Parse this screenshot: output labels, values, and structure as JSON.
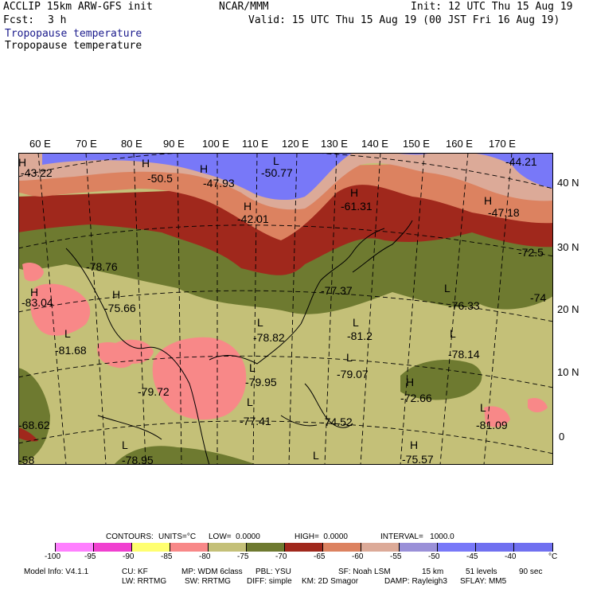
{
  "header": {
    "model": "ACCLIP 15km ARW-GFS init",
    "org": "NCAR/MMM",
    "init": "Init: 12 UTC Thu 15 Aug 19",
    "fcst_label": "Fcst:",
    "fcst_value": "3 h",
    "valid": "Valid: 15 UTC Thu 15 Aug 19 (00 JST Fri 16 Aug 19)",
    "field1": "Tropopause temperature",
    "field2": "Tropopause temperature"
  },
  "lon_labels": [
    "60 E",
    "70 E",
    "80 E",
    "90 E",
    "100 E",
    "110 E",
    "120 E",
    "130 E",
    "140 E",
    "150 E",
    "160 E",
    "170 E"
  ],
  "lat_labels": [
    "40 N",
    "30 N",
    "20 N",
    "10 N",
    "0"
  ],
  "colors": {
    "c_100": "#ffffff",
    "c_95": "#ff80ff",
    "c_90": "#f040d0",
    "c_85": "#ffff70",
    "c_80": "#f88888",
    "c_75": "#c4c078",
    "c_70": "#6e7a30",
    "c_65": "#a0281c",
    "c_60": "#dc8260",
    "c_55": "#dcaa98",
    "c_50": "#9a90d8",
    "c_45": "#7878f8",
    "c_40": "#7070f0"
  },
  "map_labels": [
    {
      "kind": "H",
      "text": "H"
    },
    {
      "kind": "val",
      "text": "-43.22"
    },
    {
      "kind": "H",
      "text": "H"
    },
    {
      "kind": "val",
      "text": "-50.5"
    },
    {
      "kind": "H",
      "text": "H"
    },
    {
      "kind": "val",
      "text": "-47.93"
    },
    {
      "kind": "L",
      "text": "L"
    },
    {
      "kind": "val",
      "text": "-50.77"
    },
    {
      "kind": "H",
      "text": "H"
    },
    {
      "kind": "val",
      "text": "-42.01"
    },
    {
      "kind": "H",
      "text": "H"
    },
    {
      "kind": "val",
      "text": "-61.31"
    },
    {
      "kind": "H",
      "text": "H"
    },
    {
      "kind": "val",
      "text": "-47.18"
    },
    {
      "kind": "val",
      "text": "-44.21"
    },
    {
      "kind": "val",
      "text": "-72.5"
    },
    {
      "kind": "val",
      "text": "-78.76"
    },
    {
      "kind": "H",
      "text": "H"
    },
    {
      "kind": "val",
      "text": "-83.04"
    },
    {
      "kind": "H",
      "text": "H"
    },
    {
      "kind": "val",
      "text": "-75.66"
    },
    {
      "kind": "val",
      "text": "-77.37"
    },
    {
      "kind": "L",
      "text": "L"
    },
    {
      "kind": "val",
      "text": "-76.33"
    },
    {
      "kind": "val",
      "text": "-74"
    },
    {
      "kind": "L",
      "text": "L"
    },
    {
      "kind": "val",
      "text": "-81.68"
    },
    {
      "kind": "L",
      "text": "L"
    },
    {
      "kind": "val",
      "text": "-78.82"
    },
    {
      "kind": "L",
      "text": "L"
    },
    {
      "kind": "val",
      "text": "-81.2"
    },
    {
      "kind": "L",
      "text": "L"
    },
    {
      "kind": "val",
      "text": "-78.14"
    },
    {
      "kind": "L",
      "text": "L"
    },
    {
      "kind": "val",
      "text": "-79.95"
    },
    {
      "kind": "L",
      "text": "L"
    },
    {
      "kind": "val",
      "text": "-79.07"
    },
    {
      "kind": "val",
      "text": "-79.72"
    },
    {
      "kind": "H",
      "text": "H"
    },
    {
      "kind": "val",
      "text": "-72.66"
    },
    {
      "kind": "L",
      "text": "L"
    },
    {
      "kind": "val",
      "text": "-77.41"
    },
    {
      "kind": "val",
      "text": "-74.52"
    },
    {
      "kind": "L",
      "text": "L"
    },
    {
      "kind": "val",
      "text": "-81.09"
    },
    {
      "kind": "val",
      "text": "-68.62"
    },
    {
      "kind": "L",
      "text": "L"
    },
    {
      "kind": "val",
      "text": "-78.95"
    },
    {
      "kind": "L",
      "text": "L"
    },
    {
      "kind": "H",
      "text": "H"
    },
    {
      "kind": "val",
      "text": "-75.57"
    },
    {
      "kind": "val",
      "text": "-58"
    }
  ],
  "contours": {
    "label": "CONTOURS:",
    "units": "UNITS=°C",
    "low": "LOW=  0.0000",
    "high": "HIGH=  0.0000",
    "interval": "INTERVAL=   1000.0"
  },
  "colorbar_ticks": [
    "-100",
    "-95",
    "-90",
    "-85",
    "-80",
    "-75",
    "-70",
    "-65",
    "-60",
    "-55",
    "-50",
    "-45",
    "-40",
    "°C"
  ],
  "footer": {
    "model_info": "Model Info: V4.1.1",
    "cu": "CU: KF",
    "mp": "MP: WDM 6class",
    "pbl": "PBL: YSU",
    "sf": "SF: Noah LSM",
    "res": "15 km",
    "levels": "51 levels",
    "dt": "90 sec",
    "lw": "LW: RRTMG",
    "sw": "SW: RRTMG",
    "diff": "DIFF: simple",
    "km": "KM: 2D Smagor",
    "damp": "DAMP: Rayleigh3",
    "sflay": "SFLAY: MM5"
  }
}
